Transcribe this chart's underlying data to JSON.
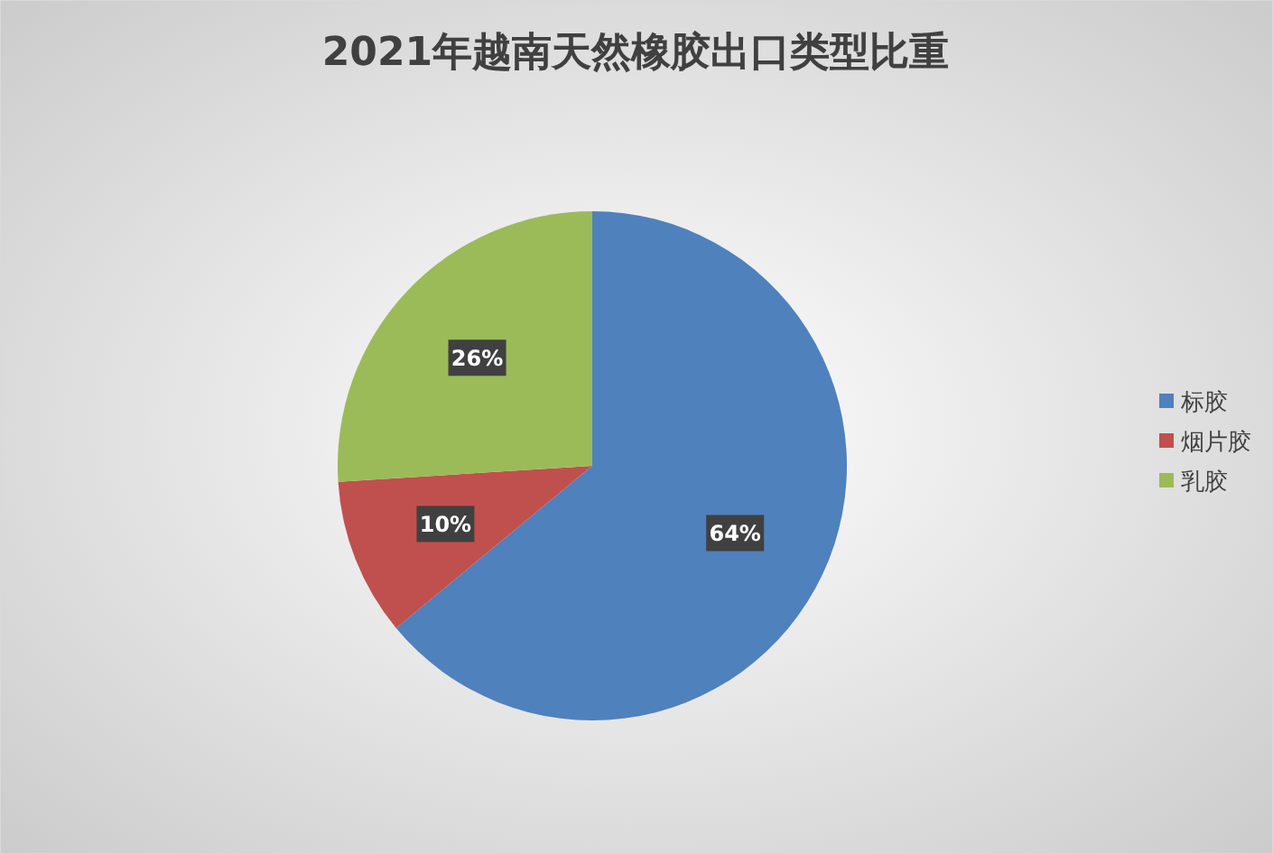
{
  "chart_data": {
    "type": "pie",
    "title": "2021年越南天然橡胶出口类型比重",
    "categories": [
      "标胶",
      "烟片胶",
      "乳胶"
    ],
    "values": [
      64,
      10,
      26
    ],
    "colors": [
      "#4f81bd",
      "#c0504d",
      "#9bbb59"
    ],
    "value_labels": [
      "64%",
      "10%",
      "26%"
    ],
    "legend": "right"
  }
}
